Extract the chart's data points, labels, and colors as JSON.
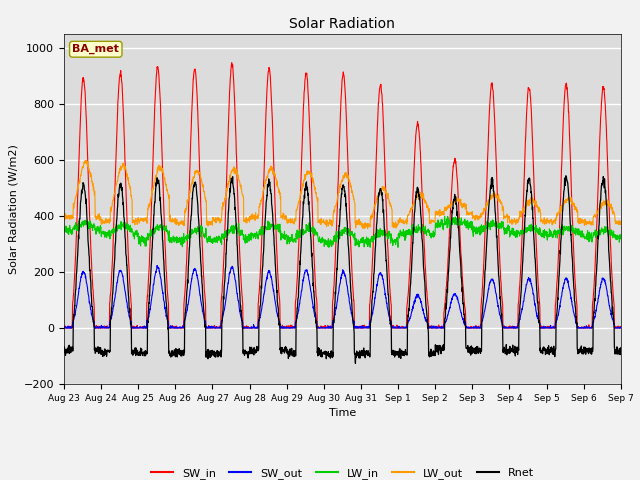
{
  "title": "Solar Radiation",
  "ylabel": "Solar Radiation (W/m2)",
  "xlabel": "Time",
  "ylim": [
    -200,
    1050
  ],
  "n_days": 15,
  "tick_labels": [
    "Aug 23",
    "Aug 24",
    "Aug 25",
    "Aug 26",
    "Aug 27",
    "Aug 28",
    "Aug 29",
    "Aug 30",
    "Aug 31",
    "Sep 1",
    "Sep 2",
    "Sep 3",
    "Sep 4",
    "Sep 5",
    "Sep 6",
    "Sep 7"
  ],
  "colors": {
    "SW_in": "#ff0000",
    "SW_out": "#0000ff",
    "LW_in": "#00cc00",
    "LW_out": "#ff9900",
    "Rnet": "#000000"
  },
  "legend_label": "BA_met",
  "bg_color": "#dcdcdc",
  "grid_color": "#ffffff",
  "sw_in_peaks": [
    890,
    910,
    930,
    925,
    940,
    925,
    910,
    905,
    865,
    730,
    600,
    870,
    860,
    870,
    860
  ],
  "sw_out_peaks": [
    200,
    205,
    215,
    210,
    215,
    200,
    205,
    200,
    195,
    115,
    120,
    175,
    175,
    175,
    175
  ],
  "lw_in_base": [
    375,
    365,
    360,
    350,
    355,
    365,
    355,
    350,
    340,
    355,
    385,
    370,
    355,
    355,
    350
  ],
  "lw_in_night": [
    350,
    335,
    315,
    315,
    315,
    330,
    315,
    305,
    308,
    335,
    370,
    350,
    335,
    335,
    325
  ],
  "lw_out_peaks": [
    590,
    580,
    570,
    558,
    568,
    568,
    558,
    548,
    498,
    475,
    455,
    475,
    455,
    460,
    450
  ],
  "lw_out_night": [
    395,
    380,
    385,
    375,
    385,
    395,
    380,
    375,
    365,
    380,
    410,
    395,
    380,
    380,
    375
  ],
  "rnet_peaks": [
    510,
    515,
    530,
    520,
    530,
    520,
    510,
    510,
    495,
    495,
    468,
    522,
    532,
    537,
    537
  ],
  "rnet_night": [
    -80,
    -85,
    -90,
    -90,
    -90,
    -80,
    -90,
    -95,
    -90,
    -90,
    -75,
    -80,
    -80,
    -80,
    -80
  ]
}
